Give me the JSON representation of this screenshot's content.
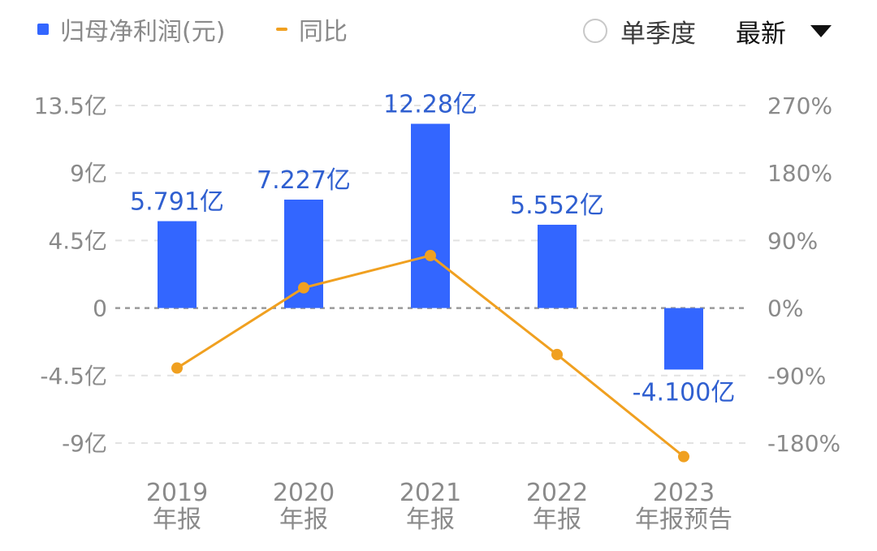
{
  "legend": {
    "bar_label": "归母净利润(元)",
    "line_label": "同比"
  },
  "controls": {
    "single_quarter_label": "单季度",
    "single_quarter_checked": false,
    "period_select_label": "最新"
  },
  "colors": {
    "bar": "#3366ff",
    "line": "#f0a020",
    "grid": "#e2e2e2",
    "zero_line": "#9a9a9a",
    "data_label": "#2f5fd0",
    "tick": "#8a8a8a"
  },
  "icons": {
    "radio": "radio-unchecked-icon",
    "dropdown": "caret-down-icon"
  },
  "chart_data": {
    "type": "bar",
    "categories": [
      [
        "2019",
        "年报"
      ],
      [
        "2020",
        "年报"
      ],
      [
        "2021",
        "年报"
      ],
      [
        "2022",
        "年报"
      ],
      [
        "2023",
        "年报预告"
      ]
    ],
    "series": [
      {
        "name": "归母净利润(元)",
        "type": "bar",
        "axis": "left",
        "values": [
          5.791,
          7.227,
          12.28,
          5.552,
          -4.1
        ],
        "labels": [
          "5.791亿",
          "7.227亿",
          "12.28亿",
          "5.552亿",
          "-4.100亿"
        ]
      },
      {
        "name": "同比",
        "type": "line",
        "axis": "right",
        "values": [
          -80,
          27,
          70,
          -62,
          -198
        ]
      }
    ],
    "y_left": {
      "range": [
        -9,
        13.5
      ],
      "ticks": [
        13.5,
        9,
        4.5,
        0,
        -4.5,
        -9
      ],
      "tick_labels": [
        "13.5亿",
        "9亿",
        "4.5亿",
        "0",
        "-4.5亿",
        "-9亿"
      ]
    },
    "y_right": {
      "range": [
        -180,
        270
      ],
      "ticks": [
        270,
        180,
        90,
        0,
        -90,
        -180
      ],
      "tick_labels": [
        "270%",
        "180%",
        "90%",
        "0%",
        "-90%",
        "-180%"
      ]
    },
    "grid": true,
    "legend_position": "top-left"
  }
}
